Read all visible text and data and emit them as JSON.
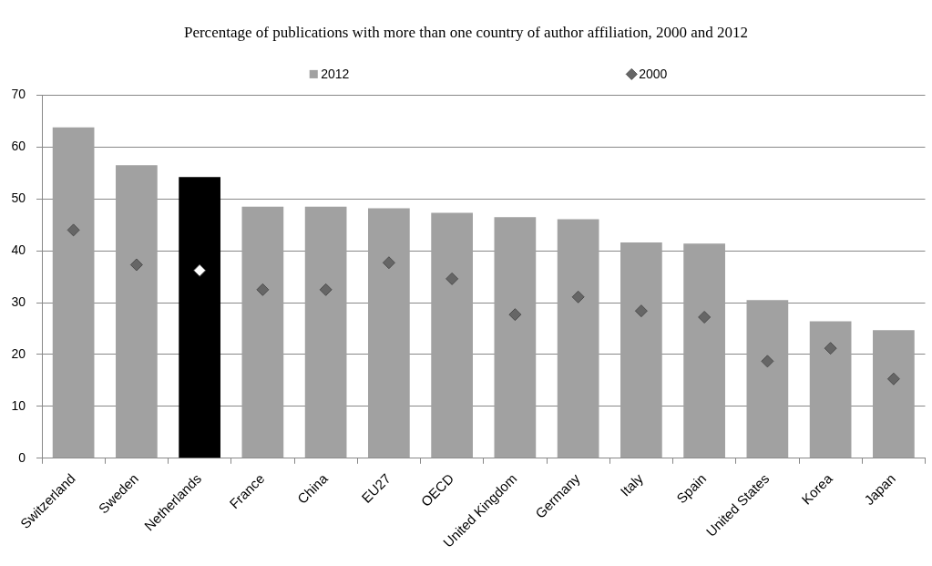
{
  "chart_data": {
    "type": "bar",
    "title": "Percentage of publications with more than one country of author affiliation, 2000 and 2012",
    "categories": [
      "Switzerland",
      "Sweden",
      "Netherlands",
      "France",
      "China",
      "EU27",
      "OECD",
      "United Kingdom",
      "Germany",
      "Italy",
      "Spain",
      "United States",
      "Korea",
      "Japan"
    ],
    "series": [
      {
        "name": "2012",
        "type": "bar",
        "color": "#a1a1a1",
        "colors": [
          "#a1a1a1",
          "#a1a1a1",
          "#000000",
          "#a1a1a1",
          "#a1a1a1",
          "#a1a1a1",
          "#a1a1a1",
          "#a1a1a1",
          "#a1a1a1",
          "#a1a1a1",
          "#a1a1a1",
          "#a1a1a1",
          "#a1a1a1",
          "#a1a1a1"
        ],
        "values": [
          63.8,
          56.5,
          54.2,
          48.5,
          48.5,
          48.2,
          47.3,
          46.5,
          46.1,
          41.6,
          41.4,
          30.5,
          26.4,
          24.7
        ]
      },
      {
        "name": "2000",
        "type": "scatter",
        "color": "#666666",
        "colors": [
          "#666666",
          "#666666",
          "#ffffff",
          "#666666",
          "#666666",
          "#666666",
          "#666666",
          "#666666",
          "#666666",
          "#666666",
          "#666666",
          "#666666",
          "#666666",
          "#666666"
        ],
        "values": [
          44.0,
          37.3,
          36.2,
          32.5,
          32.5,
          37.7,
          34.6,
          27.7,
          31.1,
          28.4,
          27.2,
          18.7,
          21.2,
          15.3
        ]
      }
    ],
    "ylim": [
      0,
      70
    ],
    "yticks": [
      0,
      10,
      20,
      30,
      40,
      50,
      60,
      70
    ],
    "grid": "y",
    "legend": "top",
    "marker": "diamond"
  }
}
